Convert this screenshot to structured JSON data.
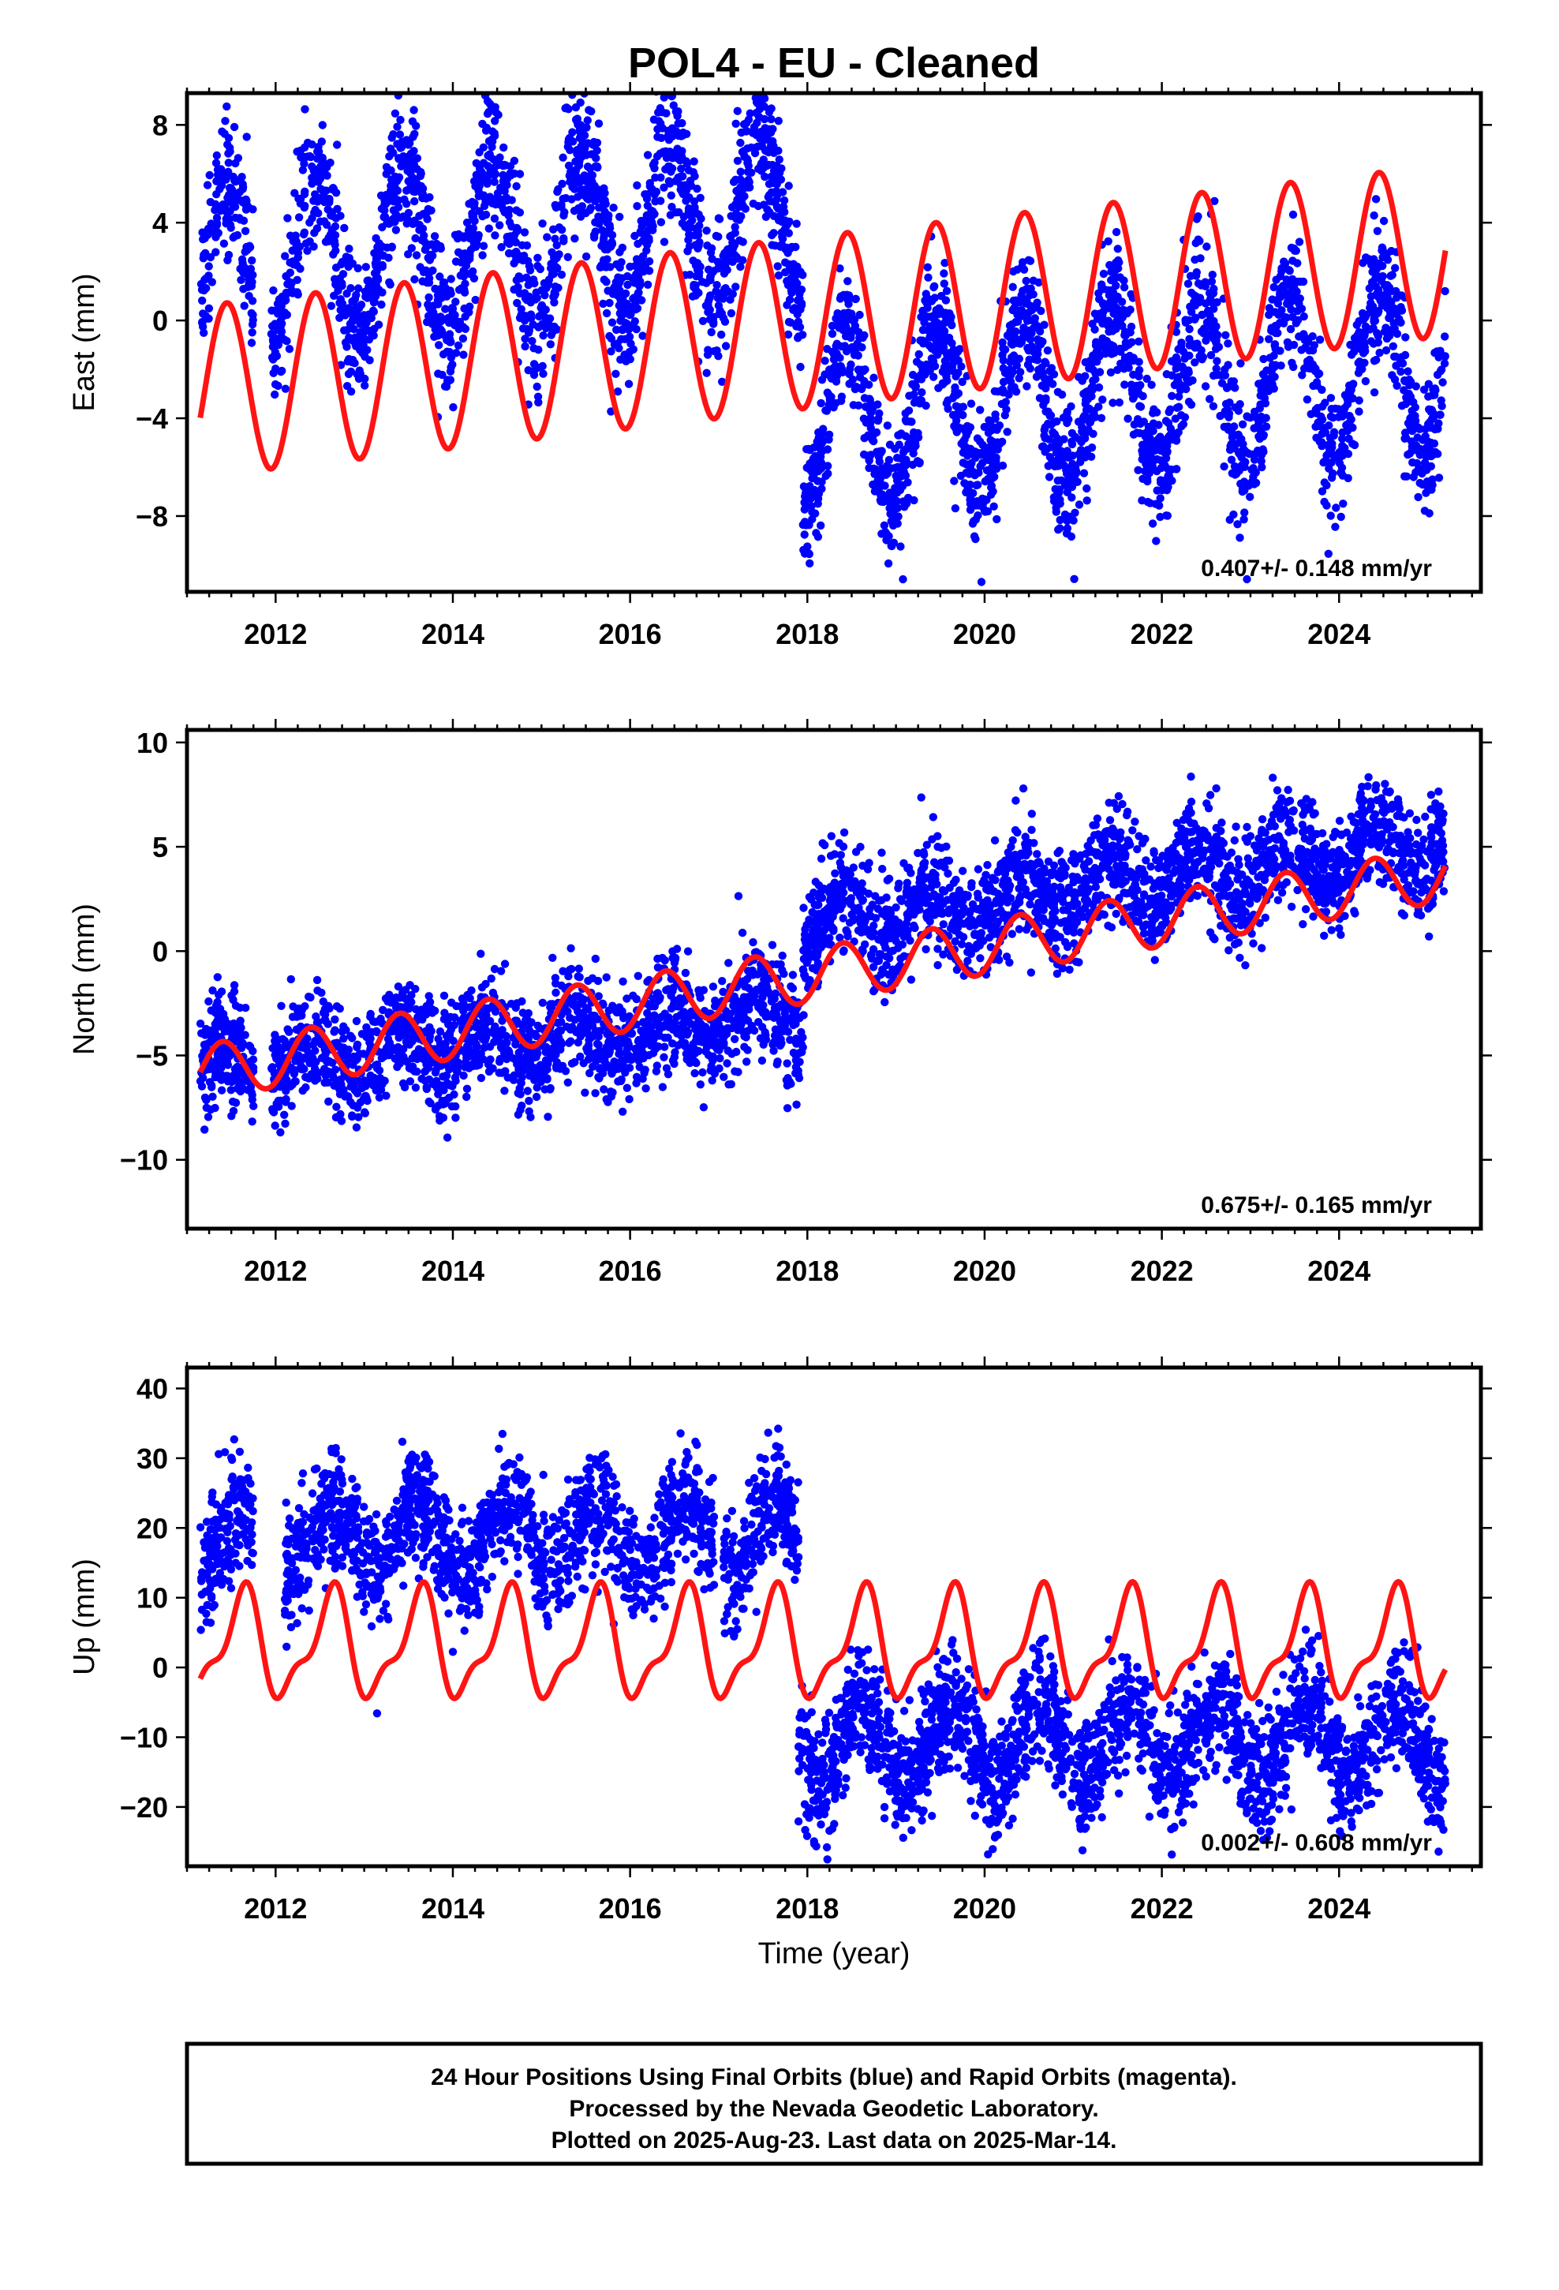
{
  "title": "POL4  - EU - Cleaned",
  "xlabel": "Time (year)",
  "footer_lines": [
    "24 Hour Positions Using Final Orbits (blue) and Rapid Orbits (magenta).",
    "Processed by the Nevada Geodetic Laboratory.",
    "Plotted on 2025-Aug-23. Last data on 2025-Mar-14."
  ],
  "colors": {
    "points": "#0000ff",
    "model": "#ff1414",
    "frame": "#000000"
  },
  "chart_data": [
    {
      "type": "scatter",
      "ylabel": "East (mm)",
      "rate_text": "0.407+/- 0.148 mm/yr",
      "xlim": [
        2011.0,
        2025.6
      ],
      "ylim": [
        -11.1,
        9.3
      ],
      "xticks": [
        2012,
        2014,
        2016,
        2018,
        2020,
        2022,
        2024
      ],
      "yticks": [
        -8,
        -4,
        0,
        4,
        8
      ],
      "ytick_labels": [
        "−8",
        "−4",
        "0",
        "4",
        "8"
      ],
      "data_span": [
        2011.15,
        2025.2
      ],
      "gaps": [
        [
          2011.75,
          2011.95
        ]
      ],
      "points_model": {
        "segments": [
          {
            "t0": 2011.15,
            "t1": 2017.95,
            "offset": 2.0,
            "trend": 0.35,
            "t_ref": 2011.15,
            "amp": 3.4,
            "noise": 1.4
          },
          {
            "t0": 2017.95,
            "t1": 2025.2,
            "offset": -4.2,
            "trend": 0.35,
            "t_ref": 2017.95,
            "amp": 3.5,
            "noise": 1.4
          }
        ],
        "annual_peak_phase": 0.45
      },
      "model_curve": {
        "offset": -2.9,
        "trend": 0.41,
        "t_ref": 2011.15,
        "annual_amp": 3.5,
        "annual_peak_phase": 0.45,
        "semiannual_amp": 0.0
      }
    },
    {
      "type": "scatter",
      "ylabel": "North (mm)",
      "rate_text": "0.675+/- 0.165 mm/yr",
      "xlim": [
        2011.0,
        2025.6
      ],
      "ylim": [
        -13.3,
        10.6
      ],
      "xticks": [
        2012,
        2014,
        2016,
        2018,
        2020,
        2022,
        2024
      ],
      "yticks": [
        -10,
        -5,
        0,
        5,
        10
      ],
      "ytick_labels": [
        "−10",
        "−5",
        "0",
        "5",
        "10"
      ],
      "data_span": [
        2011.15,
        2025.2
      ],
      "gaps": [
        [
          2011.75,
          2011.95
        ]
      ],
      "points_model": {
        "segments": [
          {
            "t0": 2011.15,
            "t1": 2017.95,
            "offset": -5.5,
            "trend": 0.35,
            "t_ref": 2011.15,
            "amp": 1.0,
            "noise": 1.3
          },
          {
            "t0": 2017.95,
            "t1": 2025.2,
            "offset": 1.0,
            "trend": 0.6,
            "t_ref": 2017.95,
            "amp": 1.2,
            "noise": 1.3
          }
        ],
        "annual_peak_phase": 0.4
      },
      "model_curve": {
        "offset": -5.8,
        "trend": 0.675,
        "t_ref": 2011.15,
        "annual_amp": 1.3,
        "annual_peak_phase": 0.4,
        "semiannual_amp": 0.0
      }
    },
    {
      "type": "scatter",
      "ylabel": "Up (mm)",
      "rate_text": "0.002+/- 0.608 mm/yr",
      "xlim": [
        2011.0,
        2025.6
      ],
      "ylim": [
        -28.5,
        43.0
      ],
      "xticks": [
        2012,
        2014,
        2016,
        2018,
        2020,
        2022,
        2024
      ],
      "yticks": [
        -20,
        -10,
        0,
        10,
        20,
        30,
        40
      ],
      "ytick_labels": [
        "−20",
        "−10",
        "0",
        "10",
        "20",
        "30",
        "40"
      ],
      "data_span": [
        2011.15,
        2025.2
      ],
      "gaps": [
        [
          2011.75,
          2012.1
        ],
        [
          2016.95,
          2017.05
        ]
      ],
      "points_model": {
        "segments": [
          {
            "t0": 2011.15,
            "t1": 2017.9,
            "offset": 18.5,
            "trend": 0.0,
            "t_ref": 2011.15,
            "amp": 5.0,
            "noise": 4.2
          },
          {
            "t0": 2017.9,
            "t1": 2025.2,
            "offset": -10.5,
            "trend": 0.0,
            "t_ref": 2017.9,
            "amp": 5.5,
            "noise": 4.2
          }
        ],
        "annual_peak_phase": 0.62
      },
      "model_curve": {
        "offset": 3.0,
        "trend": 0.002,
        "t_ref": 2011.15,
        "annual_amp": 7.0,
        "annual_peak_phase": 0.62,
        "semiannual_amp": 2.8,
        "semiannual_peak_phase": 0.7
      }
    }
  ]
}
